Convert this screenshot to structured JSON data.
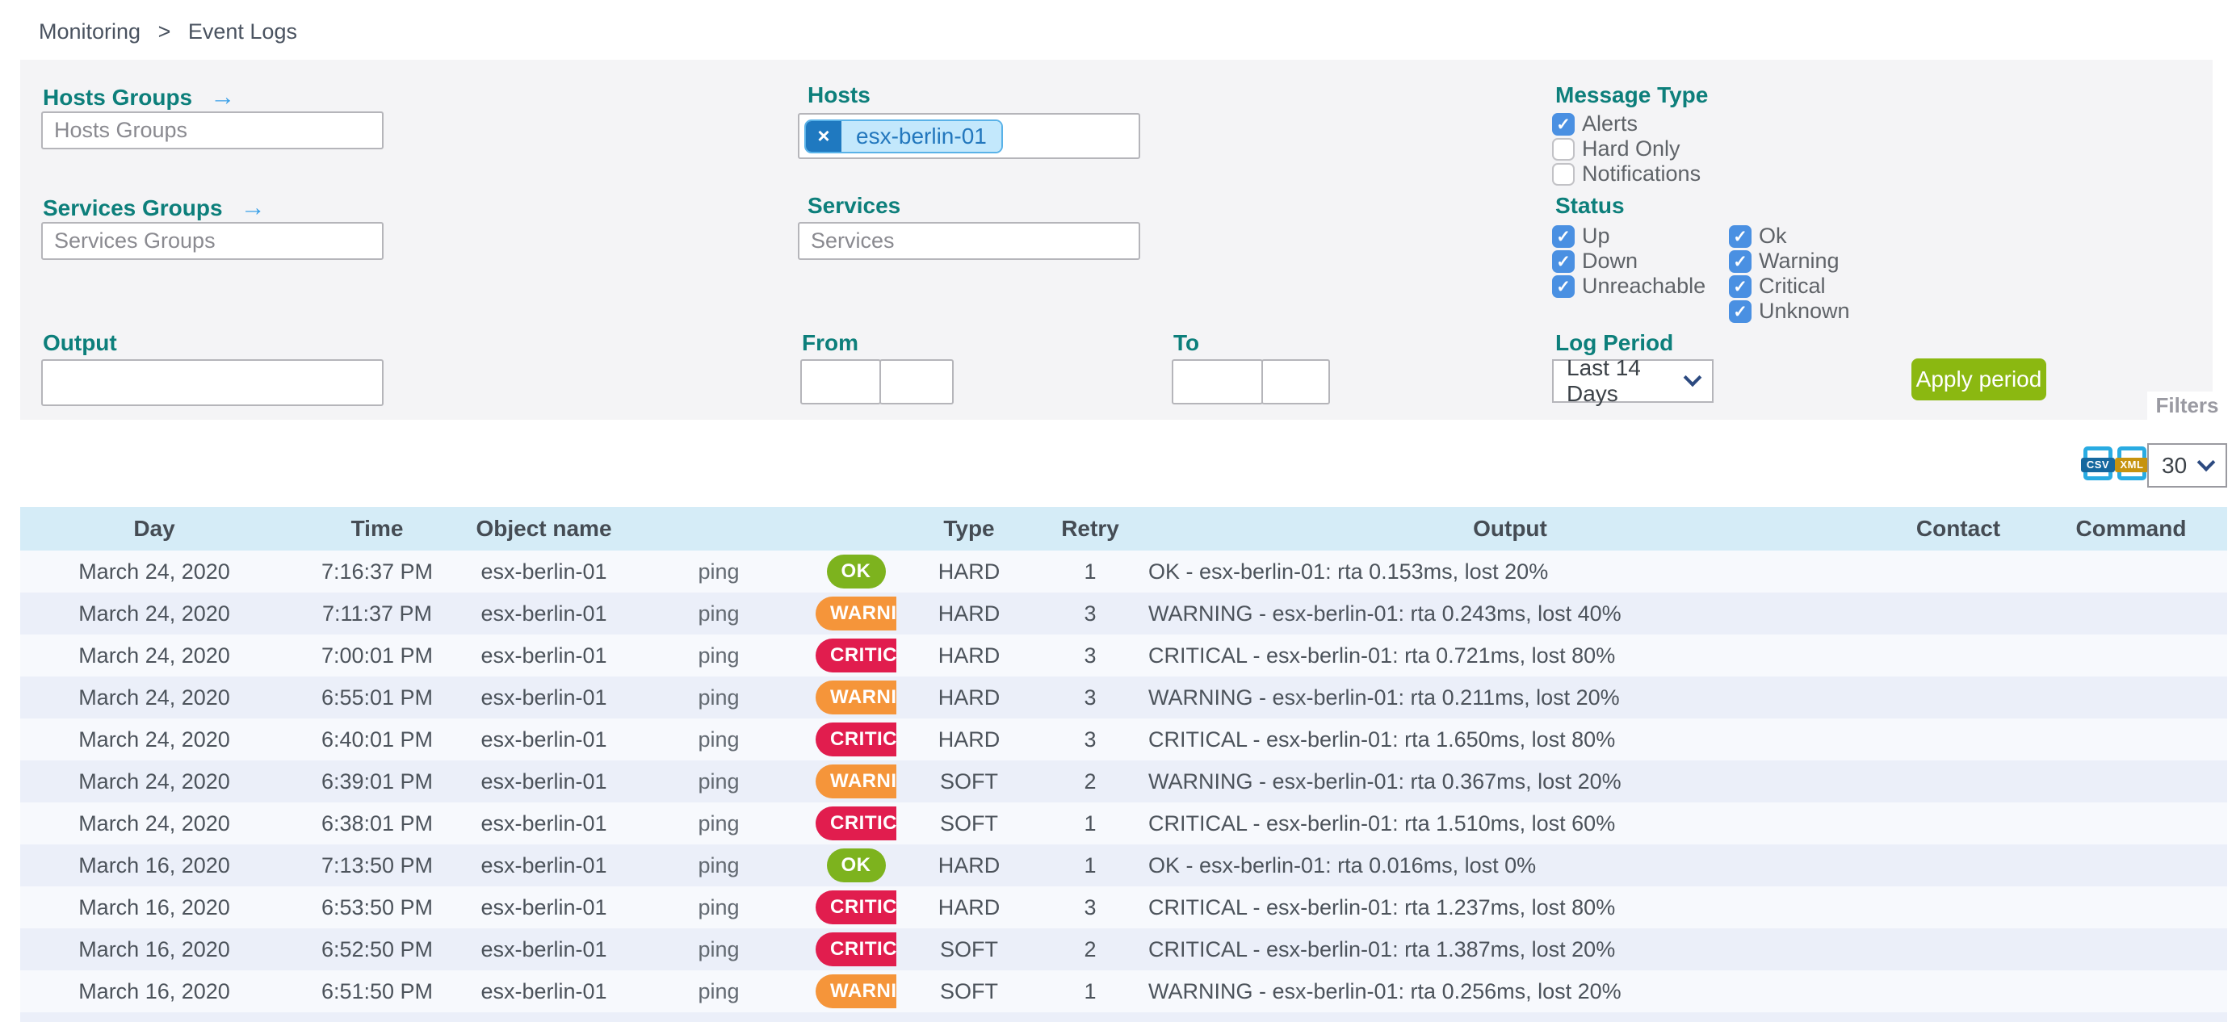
{
  "breadcrumb": {
    "items": [
      "Monitoring",
      "Event Logs"
    ],
    "separator": ">"
  },
  "filters": {
    "arrow": "→",
    "hosts_groups": {
      "label": "Hosts Groups",
      "placeholder": "Hosts Groups"
    },
    "services_groups": {
      "label": "Services Groups",
      "placeholder": "Services Groups"
    },
    "hosts": {
      "label": "Hosts",
      "tag": "esx-berlin-01",
      "remove_glyph": "×"
    },
    "services": {
      "label": "Services",
      "placeholder": "Services"
    },
    "output": {
      "label": "Output",
      "value": ""
    },
    "from": {
      "label": "From",
      "date_value": "",
      "time_value": ""
    },
    "to": {
      "label": "To",
      "date_value": "",
      "time_value": ""
    },
    "message_type": {
      "label": "Message Type",
      "options": [
        {
          "label": "Alerts",
          "checked": true
        },
        {
          "label": "Hard Only",
          "checked": false
        },
        {
          "label": "Notifications",
          "checked": false
        }
      ]
    },
    "status": {
      "label": "Status",
      "host_options": [
        {
          "label": "Up",
          "checked": true
        },
        {
          "label": "Down",
          "checked": true
        },
        {
          "label": "Unreachable",
          "checked": true
        }
      ],
      "service_options": [
        {
          "label": "Ok",
          "checked": true
        },
        {
          "label": "Warning",
          "checked": true
        },
        {
          "label": "Critical",
          "checked": true
        },
        {
          "label": "Unknown",
          "checked": true
        }
      ]
    },
    "log_period": {
      "label": "Log Period",
      "selected": "Last 14 Days"
    },
    "apply_label": "Apply period",
    "filters_tab_label": "Filters"
  },
  "toolbar": {
    "csv_label": "CSV",
    "xml_label": "XML",
    "page_size": "30"
  },
  "table": {
    "columns": [
      "Day",
      "Time",
      "Object name",
      "",
      "",
      "Type",
      "Retry",
      "Output",
      "Contact",
      "Command"
    ],
    "rows": [
      {
        "day": "March 24, 2020",
        "time": "7:16:37 PM",
        "object": "esx-berlin-01",
        "service": "ping",
        "status": "OK",
        "type": "HARD",
        "retry": "1",
        "output": "OK - esx-berlin-01: rta 0.153ms, lost 20%",
        "contact": "",
        "command": ""
      },
      {
        "day": "March 24, 2020",
        "time": "7:11:37 PM",
        "object": "esx-berlin-01",
        "service": "ping",
        "status": "WARNING",
        "type": "HARD",
        "retry": "3",
        "output": "WARNING - esx-berlin-01: rta 0.243ms, lost 40%",
        "contact": "",
        "command": ""
      },
      {
        "day": "March 24, 2020",
        "time": "7:00:01 PM",
        "object": "esx-berlin-01",
        "service": "ping",
        "status": "CRITICAL",
        "type": "HARD",
        "retry": "3",
        "output": "CRITICAL - esx-berlin-01: rta 0.721ms, lost 80%",
        "contact": "",
        "command": ""
      },
      {
        "day": "March 24, 2020",
        "time": "6:55:01 PM",
        "object": "esx-berlin-01",
        "service": "ping",
        "status": "WARNING",
        "type": "HARD",
        "retry": "3",
        "output": "WARNING - esx-berlin-01: rta 0.211ms, lost 20%",
        "contact": "",
        "command": ""
      },
      {
        "day": "March 24, 2020",
        "time": "6:40:01 PM",
        "object": "esx-berlin-01",
        "service": "ping",
        "status": "CRITICAL",
        "type": "HARD",
        "retry": "3",
        "output": "CRITICAL - esx-berlin-01: rta 1.650ms, lost 80%",
        "contact": "",
        "command": ""
      },
      {
        "day": "March 24, 2020",
        "time": "6:39:01 PM",
        "object": "esx-berlin-01",
        "service": "ping",
        "status": "WARNING",
        "type": "SOFT",
        "retry": "2",
        "output": "WARNING - esx-berlin-01: rta 0.367ms, lost 20%",
        "contact": "",
        "command": ""
      },
      {
        "day": "March 24, 2020",
        "time": "6:38:01 PM",
        "object": "esx-berlin-01",
        "service": "ping",
        "status": "CRITICAL",
        "type": "SOFT",
        "retry": "1",
        "output": "CRITICAL - esx-berlin-01: rta 1.510ms, lost 60%",
        "contact": "",
        "command": ""
      },
      {
        "day": "March 16, 2020",
        "time": "7:13:50 PM",
        "object": "esx-berlin-01",
        "service": "ping",
        "status": "OK",
        "type": "HARD",
        "retry": "1",
        "output": "OK - esx-berlin-01: rta 0.016ms, lost 0%",
        "contact": "",
        "command": ""
      },
      {
        "day": "March 16, 2020",
        "time": "6:53:50 PM",
        "object": "esx-berlin-01",
        "service": "ping",
        "status": "CRITICAL",
        "type": "HARD",
        "retry": "3",
        "output": "CRITICAL - esx-berlin-01: rta 1.237ms, lost 80%",
        "contact": "",
        "command": ""
      },
      {
        "day": "March 16, 2020",
        "time": "6:52:50 PM",
        "object": "esx-berlin-01",
        "service": "ping",
        "status": "CRITICAL",
        "type": "SOFT",
        "retry": "2",
        "output": "CRITICAL - esx-berlin-01: rta 1.387ms, lost 20%",
        "contact": "",
        "command": ""
      },
      {
        "day": "March 16, 2020",
        "time": "6:51:50 PM",
        "object": "esx-berlin-01",
        "service": "ping",
        "status": "WARNING",
        "type": "SOFT",
        "retry": "1",
        "output": "WARNING - esx-berlin-01: rta 0.256ms, lost 20%",
        "contact": "",
        "command": ""
      }
    ]
  },
  "colors": {
    "accent_teal": "#0d7f7b",
    "checkbox_blue": "#4a90e2",
    "apply_green": "#8bb811",
    "status_ok": "#7db31e",
    "status_warning": "#f5953a",
    "status_critical": "#e11d4e",
    "tag_dark_blue": "#1f79c0",
    "tag_light_blue": "#c3e8fc",
    "header_blue": "#d5ecf7"
  }
}
